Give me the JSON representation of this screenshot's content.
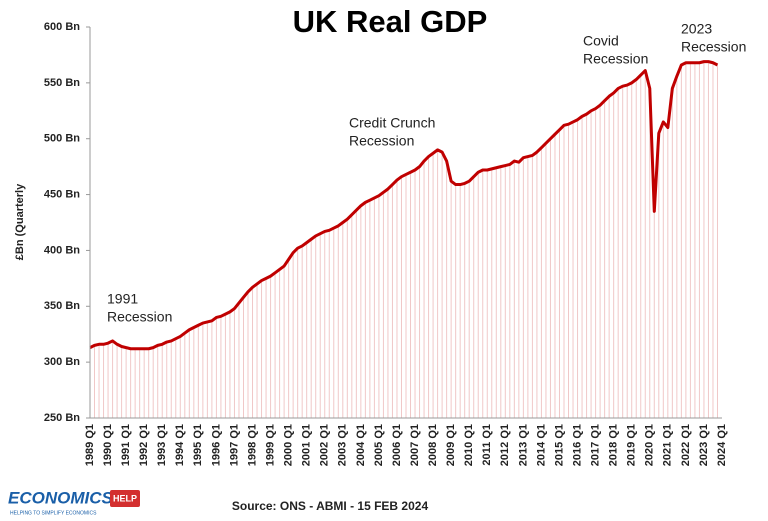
{
  "chart_data": {
    "type": "line",
    "title": "UK Real GDP",
    "y_label": "£Bn (Quarterly",
    "source": "Source: ONS - ABMI - 15 FEB 2024",
    "color": "#c00000",
    "categories": [
      "1989 Q1",
      null,
      null,
      null,
      "1990 Q1",
      null,
      null,
      null,
      "1991 Q1",
      null,
      null,
      null,
      "1992 Q1",
      null,
      null,
      null,
      "1993 Q1",
      null,
      null,
      null,
      "1994 Q1",
      null,
      null,
      null,
      "1995 Q1",
      null,
      null,
      null,
      "1996 Q1",
      null,
      null,
      null,
      "1997 Q1",
      null,
      null,
      null,
      "1998 Q1",
      null,
      null,
      null,
      "1999 Q1",
      null,
      null,
      null,
      "2000 Q1",
      null,
      null,
      null,
      "2001 Q1",
      null,
      null,
      null,
      "2002 Q1",
      null,
      null,
      null,
      "2003 Q1",
      null,
      null,
      null,
      "2004 Q1",
      null,
      null,
      null,
      "2005 Q1",
      null,
      null,
      null,
      "2006 Q1",
      null,
      null,
      null,
      "2007 Q1",
      null,
      null,
      null,
      "2008 Q1",
      null,
      null,
      null,
      "2009 Q1",
      null,
      null,
      null,
      "2010 Q1",
      null,
      null,
      null,
      "2011 Q1",
      null,
      null,
      null,
      "2012 Q1",
      null,
      null,
      null,
      "2013 Q1",
      null,
      null,
      null,
      "2014 Q1",
      null,
      null,
      null,
      "2015 Q1",
      null,
      null,
      null,
      "2016 Q1",
      null,
      null,
      null,
      "2017 Q1",
      null,
      null,
      null,
      "2018 Q1",
      null,
      null,
      null,
      "2019 Q1",
      null,
      null,
      null,
      "2020 Q1",
      null,
      null,
      null,
      "2021 Q1",
      null,
      null,
      null,
      "2022 Q1",
      null,
      null,
      null,
      "2023 Q1",
      null,
      null,
      null,
      "2024 Q1"
    ],
    "values": [
      313,
      315,
      316,
      316,
      317,
      319,
      316,
      314,
      313,
      312,
      312,
      312,
      312,
      312,
      313,
      315,
      316,
      318,
      319,
      321,
      323,
      326,
      329,
      331,
      333,
      335,
      336,
      337,
      340,
      341,
      343,
      345,
      348,
      353,
      358,
      363,
      367,
      370,
      373,
      375,
      377,
      380,
      383,
      386,
      392,
      398,
      402,
      404,
      407,
      410,
      413,
      415,
      417,
      418,
      420,
      422,
      425,
      428,
      432,
      436,
      440,
      443,
      445,
      447,
      449,
      452,
      455,
      459,
      463,
      466,
      468,
      470,
      472,
      475,
      480,
      484,
      487,
      490,
      488,
      480,
      462,
      459,
      459,
      460,
      462,
      466,
      470,
      472,
      472,
      473,
      474,
      475,
      476,
      477,
      480,
      479,
      483,
      484,
      485,
      488,
      492,
      496,
      500,
      504,
      508,
      512,
      513,
      515,
      517,
      520,
      522,
      525,
      527,
      530,
      534,
      538,
      541,
      545,
      547,
      548,
      550,
      553,
      557,
      561,
      545,
      435,
      505,
      515,
      510,
      545,
      556,
      566,
      568,
      568,
      568,
      568,
      569,
      569,
      568,
      566,
      null
    ],
    "ylim": [
      250,
      600
    ],
    "yticks": [
      {
        "value": 250,
        "label": "250 Bn"
      },
      {
        "value": 300,
        "label": "300 Bn"
      },
      {
        "value": 350,
        "label": "350 Bn"
      },
      {
        "value": 400,
        "label": "400 Bn"
      },
      {
        "value": 450,
        "label": "450 Bn"
      },
      {
        "value": 500,
        "label": "500 Bn"
      },
      {
        "value": 550,
        "label": "550 Bn"
      },
      {
        "value": 600,
        "label": "600 Bn"
      }
    ],
    "annotations": [
      {
        "lines": [
          "1991",
          "Recession"
        ]
      },
      {
        "lines": [
          "Credit Crunch",
          "Recession"
        ]
      },
      {
        "lines": [
          "Covid",
          "Recession"
        ]
      },
      {
        "lines": [
          "2023",
          "Recession"
        ]
      }
    ]
  },
  "logo": {
    "text": "ECONOMICS",
    "badge": "HELP",
    "tagline": "HELPING TO SIMPLIFY ECONOMICS"
  }
}
